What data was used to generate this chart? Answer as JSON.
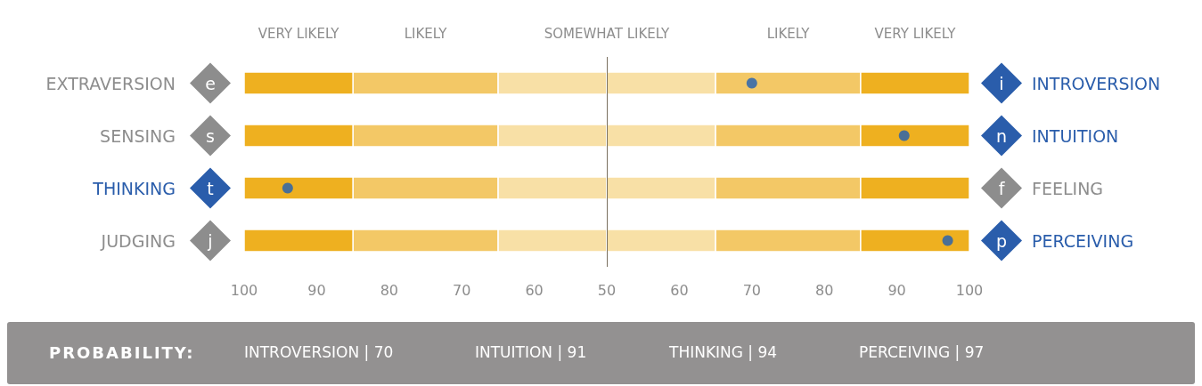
{
  "chart_data": [
    {
      "type": "bar",
      "orientation": "horizontal",
      "categories": [
        "EXTRAVERSION",
        "SENSING",
        "THINKING",
        "JUDGING"
      ],
      "series": [
        {
          "color": "#f8e0a6",
          "values": [
            15,
            15,
            15,
            15
          ],
          "base": [
            50,
            50,
            50,
            50
          ]
        },
        {
          "name": "LIKELY",
          "color": "#f3c866",
          "values": [
            20,
            20,
            20,
            20
          ],
          "base": [
            65,
            65,
            65,
            65
          ]
        },
        {
          "name": "VERY LIKELY",
          "color": "#eeb020",
          "values": [
            15,
            15,
            15,
            15
          ],
          "base": [
            85,
            85,
            85,
            85
          ]
        },
        {
          "type": "scatter",
          "color": "#1f5fb4",
          "values": [
            null,
            null,
            94,
            null
          ]
        }
      ],
      "xlim": [
        100,
        50
      ],
      "xticks": [
        100,
        90,
        80,
        70,
        60,
        50
      ],
      "annotations": [
        "e",
        "s",
        "t",
        "j"
      ]
    },
    {
      "type": "bar",
      "orientation": "horizontal",
      "categories": [
        "INTROVERSION",
        "INTUITION",
        "FEELING",
        "PERCEIVING"
      ],
      "series": [
        {
          "color": "#f8e0a6",
          "values": [
            15,
            15,
            15,
            15
          ],
          "base": [
            50,
            50,
            50,
            50
          ]
        },
        {
          "name": "LIKELY",
          "color": "#f3c866",
          "values": [
            20,
            20,
            20,
            20
          ],
          "base": [
            65,
            65,
            65,
            65
          ]
        },
        {
          "name": "VERY LIKELY",
          "color": "#eeb020",
          "values": [
            15,
            15,
            15,
            15
          ],
          "base": [
            85,
            85,
            85,
            85
          ]
        },
        {
          "type": "scatter",
          "color": "#1f5fb4",
          "values": [
            70,
            91,
            null,
            97
          ]
        }
      ],
      "xlim": [
        50,
        100
      ],
      "xticks": [
        60,
        70,
        80,
        90,
        100
      ],
      "ref_lines": [
        {
          "axis": "x",
          "value": 50,
          "label": "SOMEWHAT LIKELY",
          "color": "#7a7060"
        }
      ],
      "annotations": [
        "i",
        "n",
        "f",
        "p"
      ]
    },
    {
      "type": "other",
      "title": "PROBABILITY:",
      "annotations": [
        "INTROVERSION | 70",
        "INTUITION | 91",
        "THINKING | 94",
        "PERCEIVING | 97"
      ]
    }
  ]
}
